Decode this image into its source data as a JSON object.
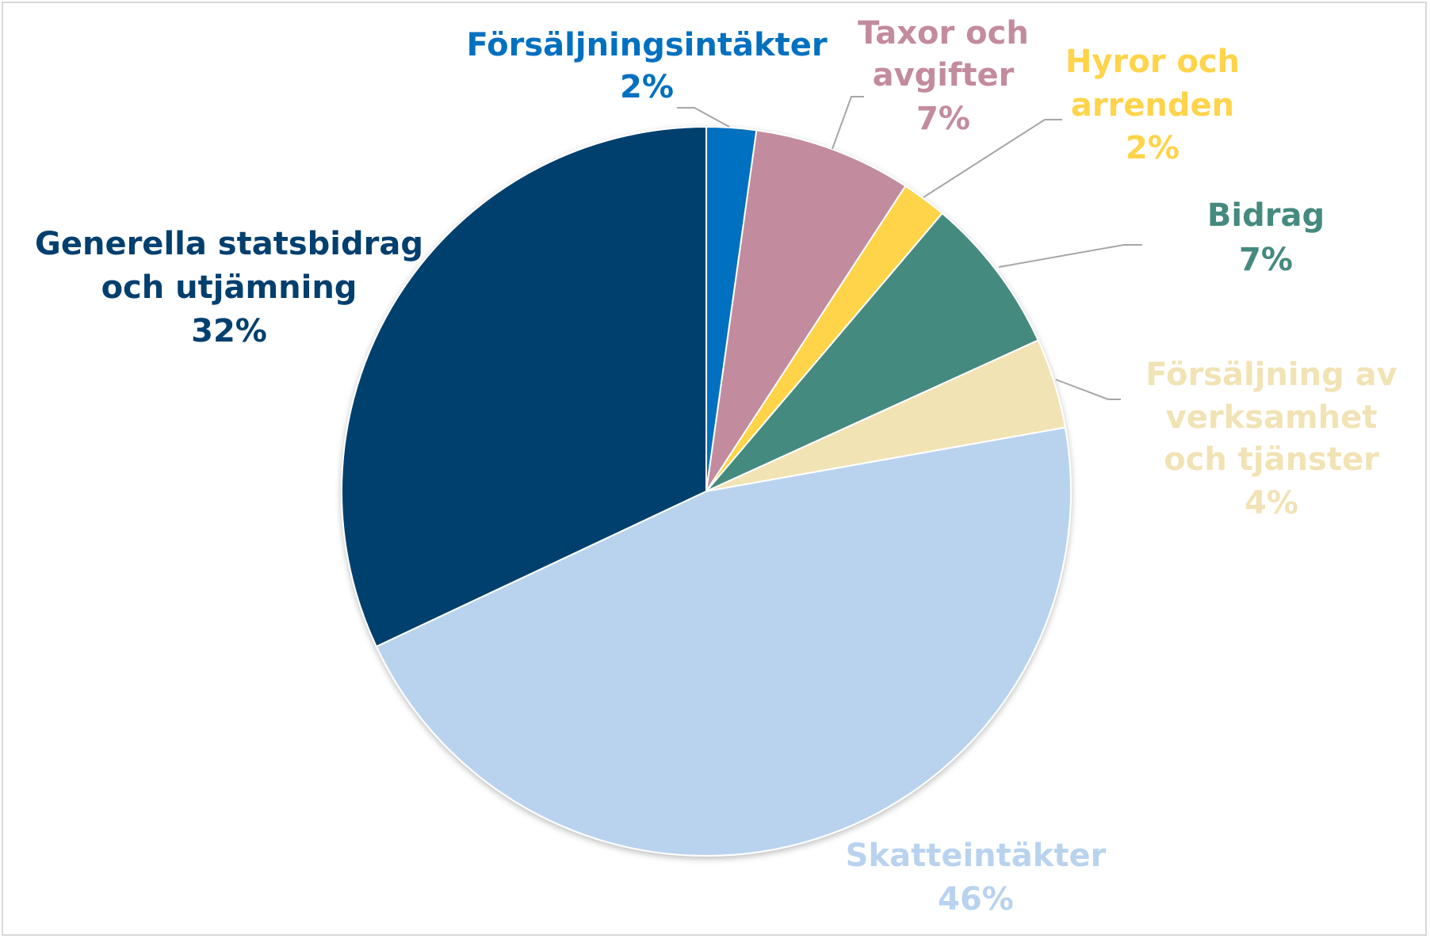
{
  "chart_data": {
    "type": "pie",
    "title": "",
    "slices": [
      {
        "label": "Försäljningsintäkter",
        "value": 2.2,
        "pct_label": "2%",
        "color": "#0070c0"
      },
      {
        "label": "Taxor och avgifter",
        "value": 7.0,
        "pct_label": "7%",
        "color": "#c38b9e"
      },
      {
        "label": "Hyror och arrenden",
        "value": 2.0,
        "pct_label": "2%",
        "color": "#ffd44a"
      },
      {
        "label": "Bidrag",
        "value": 7.0,
        "pct_label": "7%",
        "color": "#458a7e"
      },
      {
        "label": "Försäljning av verksamhet och tjänster",
        "value": 4.0,
        "pct_label": "4%",
        "color": "#f2e3b5"
      },
      {
        "label": "Skatteintäkter",
        "value": 45.8,
        "pct_label": "46%",
        "color": "#b9d3ef"
      },
      {
        "label": "Generella statsbidrag och utjämning",
        "value": 32.0,
        "pct_label": "32%",
        "color": "#003f6e"
      }
    ],
    "legend": "none",
    "data_labels": "outside with leader lines"
  }
}
